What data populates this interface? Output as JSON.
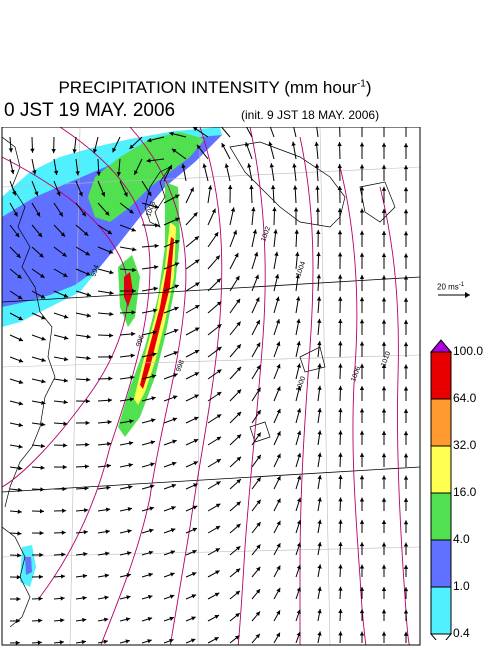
{
  "title": {
    "text": "PRECIPITATION INTENSITY (mm hour",
    "exponent": "-1",
    "close": ")"
  },
  "time_label": "0 JST 19 MAY. 2006",
  "init_label": "(init. 9 JST 18 MAY. 2006)",
  "reference_vector": {
    "label": "20 ms",
    "exponent": "-1"
  },
  "colorbar": {
    "ticks": [
      "100.0",
      "64.0",
      "32.0",
      "16.0",
      "4.0",
      "1.0",
      "0.4"
    ],
    "colors": [
      "#b000e0",
      "#e80000",
      "#ff9a30",
      "#ffff50",
      "#50e050",
      "#6070ff",
      "#50f0ff",
      "#ffffff"
    ]
  },
  "isobar_labels": [
    "994",
    "996",
    "998",
    "1000",
    "1002",
    "1004",
    "1006",
    "1008",
    "1010"
  ],
  "colors": {
    "isobar": "#b4006e",
    "grid": "#000000",
    "coast": "#000000",
    "vector": "#000000"
  }
}
